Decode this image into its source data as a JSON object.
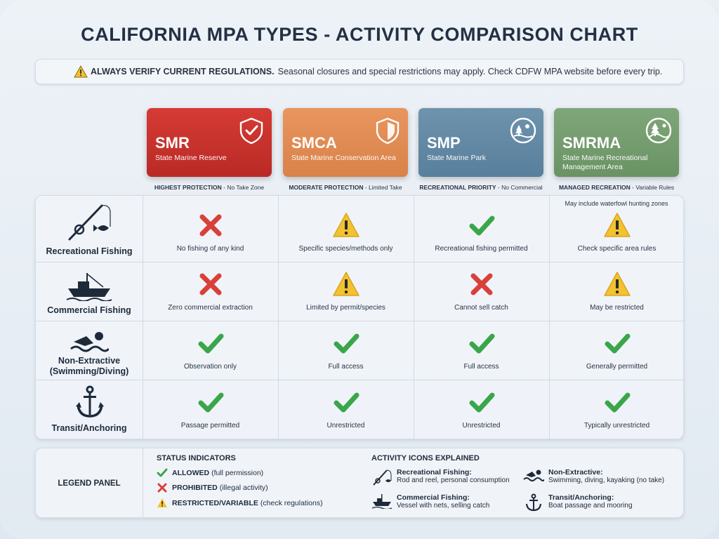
{
  "title": "CALIFORNIA MPA TYPES - ACTIVITY COMPARISON CHART",
  "warning": {
    "icon": "warning-triangle-icon",
    "bold": "ALWAYS VERIFY CURRENT REGULATIONS.",
    "text": "Seasonal closures and special restrictions may apply. Check CDFW MPA website before every trip."
  },
  "columns": [
    {
      "abbr": "SMR",
      "full": "State Marine Reserve",
      "protection_bold": "HIGHEST PROTECTION",
      "protection_rest": " - No Take Zone",
      "icon": "shield-check-icon",
      "color": "#c9302c"
    },
    {
      "abbr": "SMCA",
      "full": "State Marine Conservation Area",
      "protection_bold": "MODERATE PROTECTION",
      "protection_rest": " - Limited Take",
      "icon": "shield-icon",
      "color": "#e08a52"
    },
    {
      "abbr": "SMP",
      "full": "State Marine Park",
      "protection_bold": "RECREATIONAL PRIORITY",
      "protection_rest": " - No Commercial",
      "icon": "park-tree-icon",
      "color": "#6388a3"
    },
    {
      "abbr": "SMRMA",
      "full": "State Marine Recreational Management Area",
      "protection_bold": "MANAGED RECREATION",
      "protection_rest": " - Variable Rules",
      "icon": "landscape-tree-icon",
      "color": "#759e6f"
    }
  ],
  "smrma_note": "May include waterfowl hunting zones",
  "rows": [
    {
      "label": "Recreational Fishing",
      "icon": "fishing-rod-icon",
      "cells": [
        {
          "status": "prohibited",
          "text": "No fishing of any kind"
        },
        {
          "status": "restricted",
          "text": "Specific species/methods only"
        },
        {
          "status": "allowed",
          "text": "Recreational fishing permitted"
        },
        {
          "status": "restricted",
          "text": "Check specific area rules"
        }
      ]
    },
    {
      "label": "Commercial Fishing",
      "icon": "fishing-boat-icon",
      "cells": [
        {
          "status": "prohibited",
          "text": "Zero commercial extraction"
        },
        {
          "status": "restricted",
          "text": "Limited by permit/species"
        },
        {
          "status": "prohibited",
          "text": "Cannot sell catch"
        },
        {
          "status": "restricted",
          "text": "May be restricted"
        }
      ]
    },
    {
      "label": "Non-Extractive (Swimming/Diving)",
      "label_line1": "Non-Extractive",
      "label_line2": "(Swimming/Diving)",
      "icon": "swimmer-icon",
      "cells": [
        {
          "status": "allowed",
          "text": "Observation only"
        },
        {
          "status": "allowed",
          "text": "Full access"
        },
        {
          "status": "allowed",
          "text": "Full access"
        },
        {
          "status": "allowed",
          "text": "Generally permitted"
        }
      ]
    },
    {
      "label": "Transit/Anchoring",
      "icon": "anchor-icon",
      "cells": [
        {
          "status": "allowed",
          "text": "Passage permitted"
        },
        {
          "status": "allowed",
          "text": "Unrestricted"
        },
        {
          "status": "allowed",
          "text": "Unrestricted"
        },
        {
          "status": "allowed",
          "text": "Typically unrestricted"
        }
      ]
    }
  ],
  "legend": {
    "title": "LEGEND PANEL",
    "status_heading": "STATUS INDICATORS",
    "status": [
      {
        "key": "allowed",
        "bold": "ALLOWED",
        "rest": "(full permission)"
      },
      {
        "key": "prohibited",
        "bold": "PROHIBITED",
        "rest": "(illegal activity)"
      },
      {
        "key": "restricted",
        "bold": "RESTRICTED/VARIABLE",
        "rest": "(check regulations)"
      }
    ],
    "activity_heading": "ACTIVITY ICONS EXPLAINED",
    "activities": [
      {
        "icon": "fishing-rod-icon",
        "name": "Recreational Fishing:",
        "desc": "Rod and reel, personal consumption"
      },
      {
        "icon": "fishing-boat-icon",
        "name": "Commercial Fishing:",
        "desc": "Vessel with nets, selling catch"
      },
      {
        "icon": "swimmer-icon",
        "name": "Non-Extractive:",
        "desc": "Swimming, diving, kayaking (no take)"
      },
      {
        "icon": "anchor-icon",
        "name": "Transit/Anchoring:",
        "desc": "Boat passage and mooring"
      }
    ]
  },
  "colors": {
    "allowed": "#3aa64a",
    "prohibited": "#d9403a",
    "restricted": "#f2c230"
  }
}
